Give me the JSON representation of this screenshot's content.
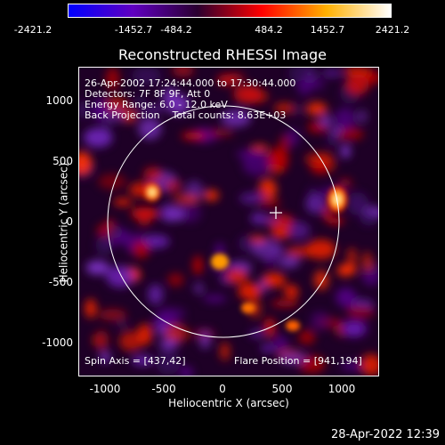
{
  "colorbar": {
    "ticks": [
      "-2421.2",
      "-1452.7",
      "-484.2",
      "484.2",
      "1452.7",
      "2421.2"
    ],
    "colors": [
      "#0000ff",
      "#6000c0",
      "#2a0030",
      "#ff0000",
      "#ffb000",
      "#ffffff"
    ]
  },
  "title": "Reconstructed RHESSI Image",
  "info": {
    "line1": "26-Apr-2002 17:24:44.000 to 17:30:44.000",
    "line2": "Detectors: 7F 8F 9F, Att 0",
    "line3": "Energy Range: 6.0 - 12.0 keV",
    "line4": "Back Projection    Total counts: 8.63E+03",
    "spin_axis": "Spin Axis = [437,42]",
    "flare_position": "Flare Position = [941,194]"
  },
  "axes": {
    "xlabel": "Heliocentric X (arcsec)",
    "ylabel": "Heliocentric Y (arcsec)",
    "xticks": [
      "-1000",
      "-500",
      "0",
      "500",
      "1000"
    ],
    "yticks": [
      "1000",
      "500",
      "0",
      "-500",
      "-1000"
    ],
    "xlim": [
      -1250,
      1280
    ],
    "ylim": [
      -1270,
      1270
    ]
  },
  "timestamp": "28-Apr-2022 12:39"
}
